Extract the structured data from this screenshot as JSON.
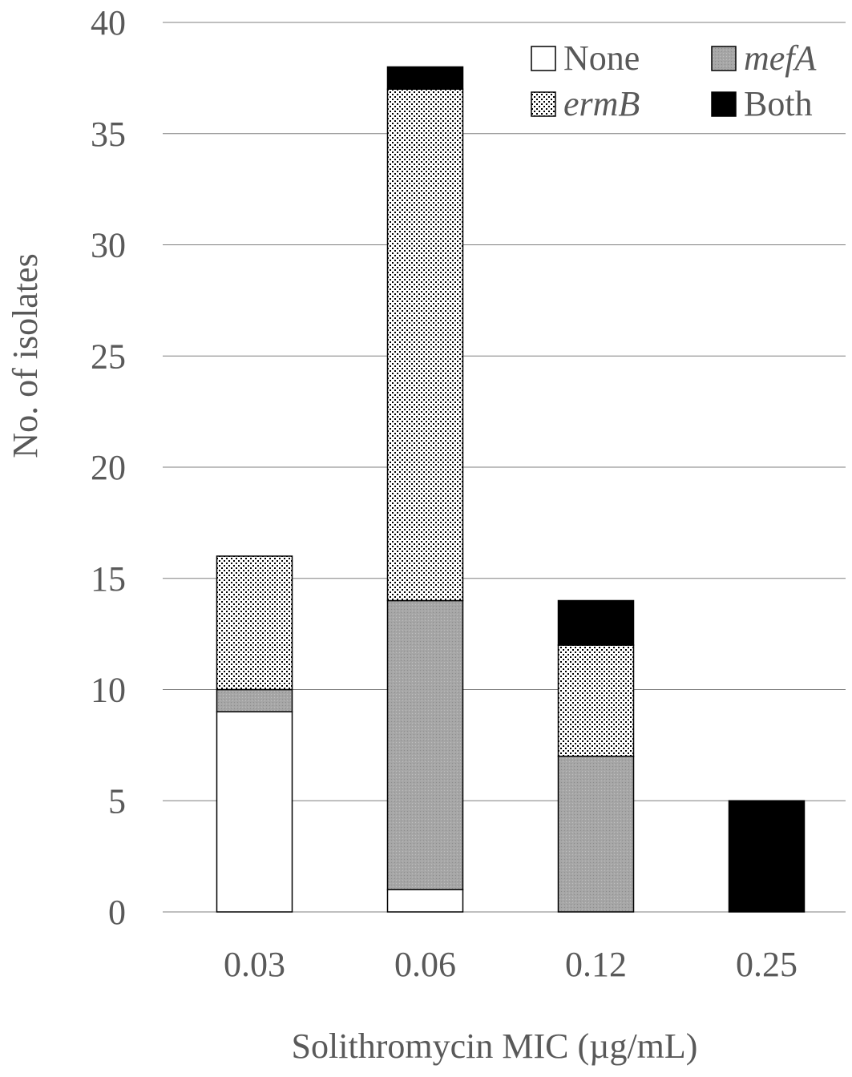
{
  "chart_data": {
    "type": "bar",
    "stacked": true,
    "categories": [
      "0.03",
      "0.06",
      "0.12",
      "0.25"
    ],
    "series": [
      {
        "name": "None",
        "values": [
          9,
          1,
          0,
          0
        ],
        "fill": "white"
      },
      {
        "name": "mefA",
        "values": [
          1,
          13,
          7,
          0
        ],
        "fill": "gray",
        "italic": true
      },
      {
        "name": "ermB",
        "values": [
          6,
          23,
          5,
          0
        ],
        "fill": "dotted",
        "italic": true
      },
      {
        "name": "Both",
        "values": [
          0,
          1,
          2,
          5
        ],
        "fill": "black"
      }
    ],
    "title": "",
    "xlabel": "Solithromycin MIC (µg/mL)",
    "ylabel": "No. of isolates",
    "ylim": [
      0,
      40
    ],
    "yticks": [
      "0",
      "5",
      "10",
      "15",
      "20",
      "25",
      "30",
      "35",
      "40"
    ],
    "grid": true,
    "legend_position": "top-right",
    "legend_order": [
      "None",
      "mefA",
      "ermB",
      "Both"
    ],
    "colors": {
      "text": "#595959",
      "grid": "#7f7f7f",
      "gray_fill": "#a6a6a6",
      "black_fill": "#000000",
      "white_fill": "#ffffff"
    }
  }
}
